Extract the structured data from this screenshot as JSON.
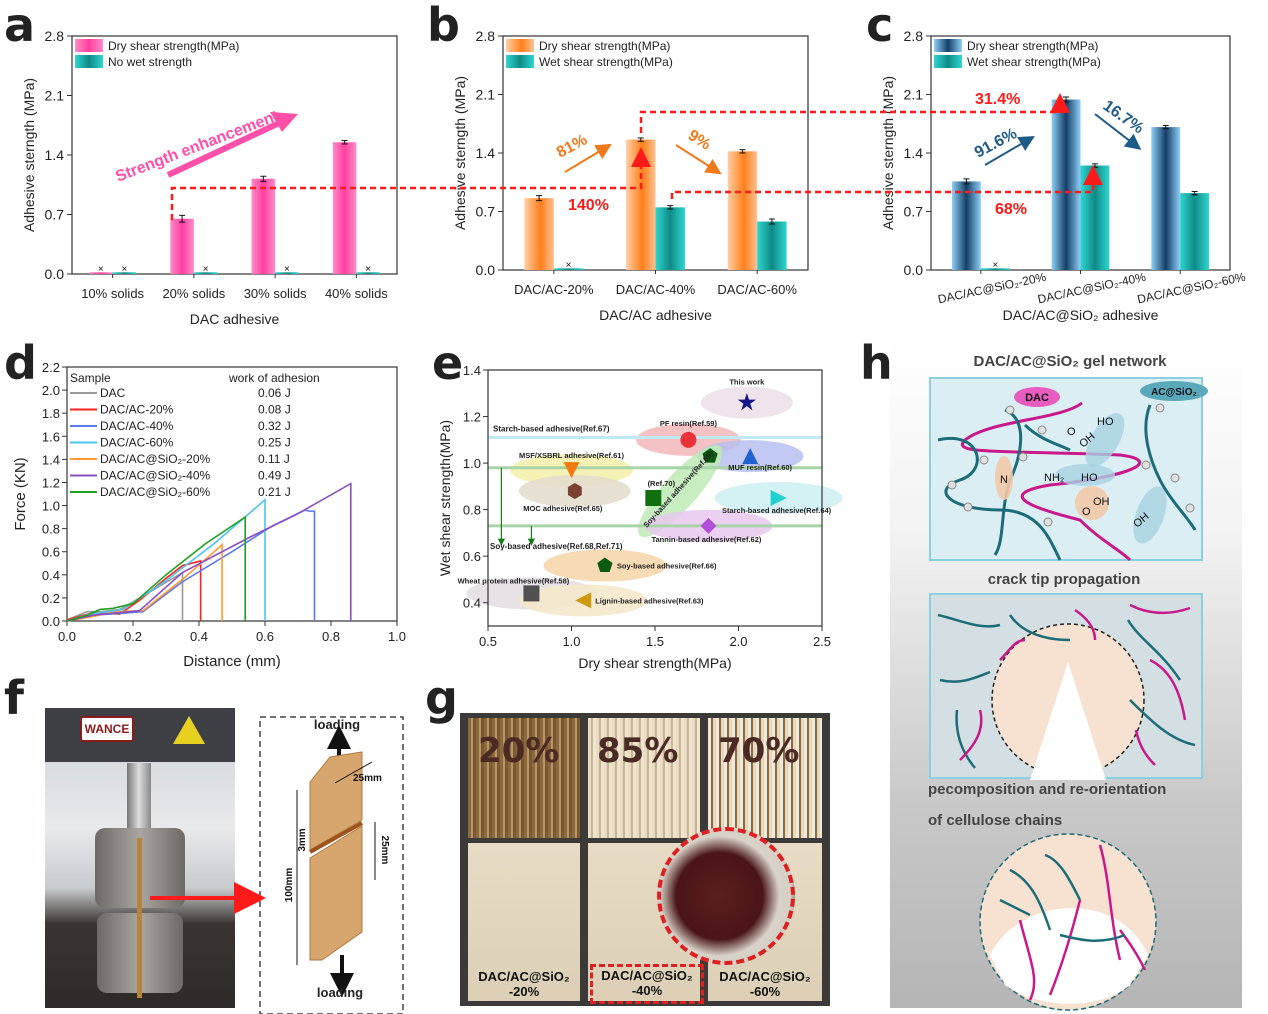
{
  "panel_letters": [
    "a",
    "b",
    "c",
    "d",
    "e",
    "f",
    "g",
    "h"
  ],
  "colors": {
    "pink": "#ff4fa8",
    "teal": "#1fb8b3",
    "orange": "#ff8a2a",
    "blue": "#1b4f7a",
    "lightblue": "#7fc6f2",
    "red_dash": "#ff1a1a",
    "annot_orange": "#f07a1a",
    "annot_blue": "#1f5b88"
  },
  "chart_data": [
    {
      "id": "a",
      "type": "bar",
      "title": "",
      "xlabel": "DAC adhesive",
      "ylabel": "Adhesive sterngth (MPa)",
      "ylim": [
        0,
        2.8
      ],
      "yticks": [
        "0.0",
        "0.7",
        "1.4",
        "2.1",
        "2.8"
      ],
      "categories": [
        "10% solids",
        "20% solids",
        "30% solids",
        "40% solids"
      ],
      "legend_position": "top-left",
      "series": [
        {
          "name": "Dry shear strength(MPa)",
          "values": [
            0.02,
            0.65,
            1.12,
            1.55
          ],
          "errors": [
            0.0,
            0.04,
            0.03,
            0.02
          ]
        },
        {
          "name": "No wet strength",
          "values": [
            0.02,
            0.02,
            0.02,
            0.02
          ],
          "errors": [
            0,
            0,
            0,
            0
          ]
        }
      ],
      "annotations": {
        "arrow_text": "Strength enhancement"
      }
    },
    {
      "id": "b",
      "type": "bar",
      "xlabel": "DAC/AC adhesive",
      "ylabel": "Adhesive sterngth (MPa)",
      "ylim": [
        0,
        2.8
      ],
      "yticks": [
        "0.0",
        "0.7",
        "1.4",
        "2.1",
        "2.8"
      ],
      "categories": [
        "DAC/AC-20%",
        "DAC/AC-40%",
        "DAC/AC-60%"
      ],
      "legend_position": "top-left",
      "series": [
        {
          "name": "Dry shear strength(MPa)",
          "values": [
            0.86,
            1.56,
            1.42
          ],
          "errors": [
            0.03,
            0.02,
            0.02
          ]
        },
        {
          "name": "Wet shear strength(MPa)",
          "values": [
            0.02,
            0.75,
            0.58
          ],
          "errors": [
            0,
            0.02,
            0.03
          ]
        }
      ],
      "annotations": {
        "up": "81%",
        "down": "9%",
        "red": "140%"
      }
    },
    {
      "id": "c",
      "type": "bar",
      "xlabel": "DAC/AC@SiO₂ adhesive",
      "ylabel": "Adhesive sterngth (MPa)",
      "ylim": [
        0,
        2.8
      ],
      "yticks": [
        "0.0",
        "0.7",
        "1.4",
        "2.1",
        "2.8"
      ],
      "categories": [
        "DAC/AC@SiO₂-20%",
        "DAC/AC@SiO₂-40%",
        "DAC/AC@SiO₂-60%"
      ],
      "legend_position": "top-left",
      "series": [
        {
          "name": "Dry shear strength(MPa)",
          "values": [
            1.06,
            2.04,
            1.71
          ],
          "errors": [
            0.03,
            0.03,
            0.02
          ]
        },
        {
          "name": "Wet shear strength(MPa)",
          "values": [
            0.02,
            1.25,
            0.92
          ],
          "errors": [
            0,
            0.02,
            0.02
          ]
        }
      ],
      "annotations": {
        "up": "91.6%",
        "down": "16.7%",
        "red_top": "31.4%",
        "red_bottom": "68%"
      }
    },
    {
      "id": "d",
      "type": "line",
      "xlabel": "Distance (mm)",
      "ylabel": "Force (KN)",
      "xlim": [
        0,
        1.0
      ],
      "ylim": [
        0,
        2.2
      ],
      "xticks": [
        "0.0",
        "0.2",
        "0.4",
        "0.6",
        "0.8",
        "1.0"
      ],
      "yticks": [
        "0.0",
        "0.2",
        "0.4",
        "0.6",
        "0.8",
        "1.0",
        "1.2",
        "1.4",
        "1.6",
        "1.8",
        "2.0",
        "2.2"
      ],
      "legend_header": [
        "Sample",
        "work of adhesion"
      ],
      "legend_position": "top-left",
      "series": [
        {
          "name": "DAC",
          "work": "0.06 J",
          "color": "#9a9a9a",
          "x": [
            0,
            0.06,
            0.1,
            0.16,
            0.22,
            0.28,
            0.35,
            0.35
          ],
          "y": [
            0.01,
            0.08,
            0.08,
            0.1,
            0.2,
            0.3,
            0.42,
            0
          ]
        },
        {
          "name": "DAC/AC-20%",
          "work": "0.08 J",
          "color": "#ff2020",
          "x": [
            0,
            0.05,
            0.08,
            0.16,
            0.22,
            0.3,
            0.35,
            0.405,
            0.405
          ],
          "y": [
            0.01,
            0.05,
            0.07,
            0.06,
            0.18,
            0.37,
            0.48,
            0.52,
            0
          ]
        },
        {
          "name": "DAC/AC-40%",
          "work": "0.32 J",
          "color": "#5a7aef",
          "x": [
            0,
            0.08,
            0.23,
            0.35,
            0.5,
            0.62,
            0.72,
            0.74,
            0.75,
            0.75
          ],
          "y": [
            0,
            0.05,
            0.08,
            0.34,
            0.6,
            0.82,
            0.96,
            0.95,
            0.95,
            0
          ]
        },
        {
          "name": "DAC/AC-60%",
          "work": "0.25 J",
          "color": "#4cc4f0",
          "x": [
            0,
            0.07,
            0.17,
            0.3,
            0.45,
            0.6,
            0.6
          ],
          "y": [
            0,
            0.06,
            0.1,
            0.35,
            0.68,
            1.05,
            0
          ]
        },
        {
          "name": "DAC/AC@SiO₂-20%",
          "work": "0.11 J",
          "color": "#ff9a30",
          "x": [
            0,
            0.06,
            0.15,
            0.23,
            0.35,
            0.47,
            0.47
          ],
          "y": [
            0,
            0.03,
            0.08,
            0.09,
            0.36,
            0.66,
            0
          ]
        },
        {
          "name": "DAC/AC@SiO₂-40%",
          "work": "0.49 J",
          "color": "#8a4fc0",
          "x": [
            0,
            0.08,
            0.22,
            0.35,
            0.55,
            0.7,
            0.86,
            0.86
          ],
          "y": [
            0,
            0.05,
            0.09,
            0.42,
            0.72,
            0.93,
            1.19,
            0
          ]
        },
        {
          "name": "DAC/AC@SiO₂-60%",
          "work": "0.21 J",
          "color": "#20a020",
          "x": [
            0,
            0.06,
            0.1,
            0.14,
            0.2,
            0.3,
            0.42,
            0.54,
            0.54
          ],
          "y": [
            0,
            0.05,
            0.1,
            0.11,
            0.15,
            0.4,
            0.67,
            0.9,
            0
          ]
        }
      ]
    },
    {
      "id": "e",
      "type": "scatter",
      "xlabel": "Dry shear strength(MPa)",
      "ylabel": "Wet shear strength(MPa)",
      "xlim": [
        0.5,
        2.5
      ],
      "ylim": [
        0.3,
        1.4
      ],
      "xticks": [
        "0.5",
        "1.0",
        "1.5",
        "2.0",
        "2.5"
      ],
      "yticks": [
        "0.4",
        "0.6",
        "0.8",
        "1.0",
        "1.2",
        "1.4"
      ],
      "hlines": [
        {
          "label": "Starch-based adhesive(Ref.67)",
          "y": 1.11,
          "color": "#bfe9f5"
        },
        {
          "label": "",
          "y": 0.98,
          "color": "#a8d5a8"
        },
        {
          "label": "",
          "y": 0.73,
          "color": "#a8d5a8"
        }
      ],
      "arrow_note": "Soy-based adhesive(Ref.68,Ref.71)",
      "points": [
        {
          "label": "This work",
          "x": 2.05,
          "y": 1.26,
          "marker": "star",
          "color": "#15158a",
          "ellipse": "#ecdfe8"
        },
        {
          "label": "PF resin(Ref.59)",
          "x": 1.7,
          "y": 1.1,
          "marker": "circle",
          "color": "#e8333a",
          "ellipse": "#f2b7b7"
        },
        {
          "label": "MUF resin(Ref.60)",
          "x": 2.07,
          "y": 1.03,
          "marker": "triangle-up",
          "color": "#2060d0",
          "ellipse": "#b7bff0"
        },
        {
          "label": "MSF/XSBRL adhesive(Ref.61)",
          "x": 1.0,
          "y": 0.97,
          "marker": "triangle-down",
          "color": "#f07a10",
          "ellipse": "#f5f0a8"
        },
        {
          "label": "MOC adhesive(Ref.65)",
          "x": 1.02,
          "y": 0.88,
          "marker": "hexagon",
          "color": "#7a4030",
          "ellipse": "#e3dccd"
        },
        {
          "label": "(Ref.70)",
          "x": 1.49,
          "y": 0.85,
          "marker": "square",
          "color": "#107010",
          "ellipse": ""
        },
        {
          "label": "Soy-based adhesive(Ref.69)",
          "x": 1.83,
          "y": 1.03,
          "marker": "pentagon",
          "color": "#0b5a10",
          "ellipse": "#bdeab5"
        },
        {
          "label": "Starch-based adhesive(Ref.64)",
          "x": 2.24,
          "y": 0.85,
          "marker": "triangle-right",
          "color": "#20d0d0",
          "ellipse": "#cdeff2"
        },
        {
          "label": "Tannin-based adhesive(Ref.62)",
          "x": 1.82,
          "y": 0.73,
          "marker": "diamond",
          "color": "#b04ed8",
          "ellipse": "#e8c8ef"
        },
        {
          "label": "Soy-based adhesive(Ref.66)",
          "x": 1.2,
          "y": 0.56,
          "marker": "pentagon",
          "color": "#0b5a10",
          "ellipse": "#f5d5a8"
        },
        {
          "label": "Wheat protein adhesive(Ref.58)",
          "x": 0.76,
          "y": 0.44,
          "marker": "square",
          "color": "#505050",
          "ellipse": "#e2dde2"
        },
        {
          "label": "Lignin-based adhesive(Ref.63)",
          "x": 1.07,
          "y": 0.41,
          "marker": "triangle-left",
          "color": "#d09a10",
          "ellipse": "#f5e8c8"
        }
      ]
    }
  ],
  "panel_f": {
    "brand": "WANCE",
    "loading_top": "loading",
    "loading_bottom": "loading",
    "dim_width": "25mm",
    "dim_overlap": "25mm",
    "dim_gap": "3mm",
    "dim_length": "100mm"
  },
  "panel_g": {
    "samples": [
      {
        "percent": "20%",
        "label_line1": "DAC/AC@SiO₂",
        "label_line2": "-20%"
      },
      {
        "percent": "85%",
        "label_line1": "DAC/AC@SiO₂",
        "label_line2": "-40%"
      },
      {
        "percent": "70%",
        "label_line1": "DAC/AC@SiO₂",
        "label_line2": "-60%"
      }
    ]
  },
  "panel_h": {
    "title": "DAC/AC@SiO₂ gel network",
    "tag_dac": "DAC",
    "tag_acsio2": "AC@SiO₂",
    "groups": [
      "HO",
      "OH",
      "NH₂",
      "HO",
      "OH",
      "OH",
      "N",
      "O",
      "O"
    ],
    "caption_crack": "crack tip propagation",
    "caption_decomp_1": "pecomposition and re-orientation",
    "caption_decomp_2": "of cellulose chains"
  }
}
